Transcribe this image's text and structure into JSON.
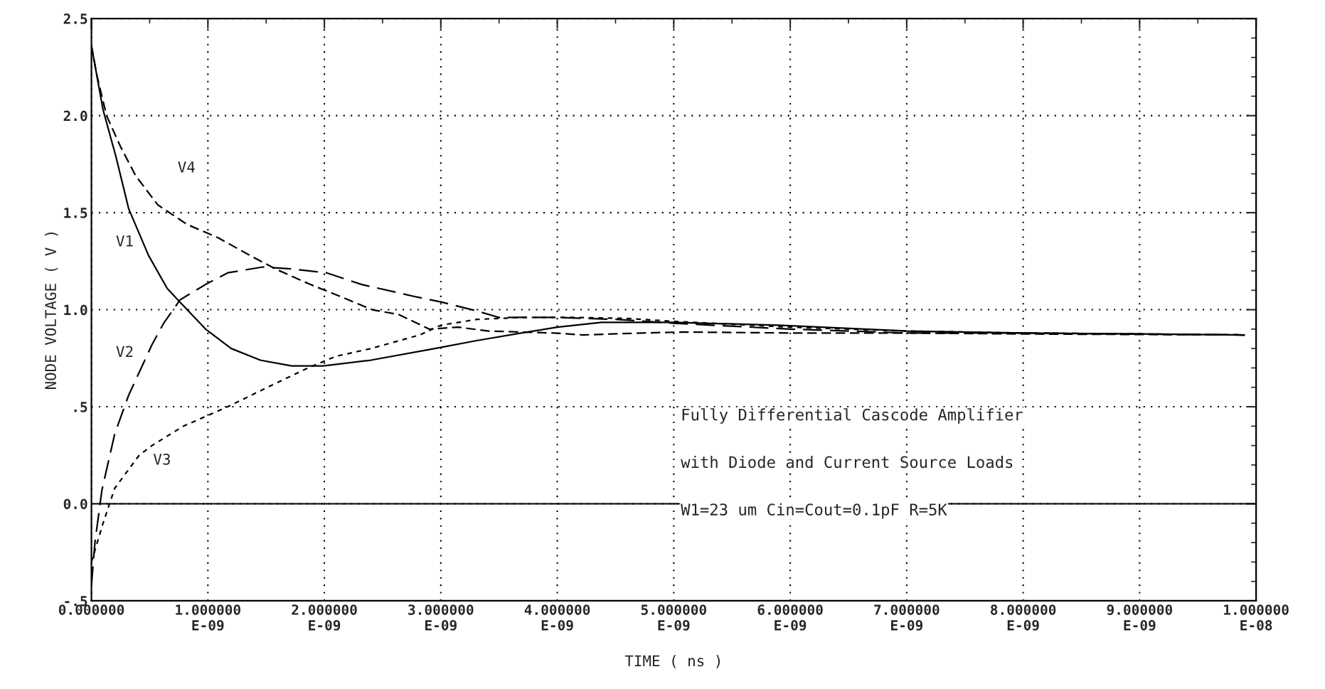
{
  "chart_data": {
    "type": "line",
    "xlabel": "TIME ( ns )",
    "ylabel": "NODE VOLTAGE ( V )",
    "xlim": [
      0,
      1e-08
    ],
    "ylim": [
      -0.5,
      2.5
    ],
    "xticks": [
      {
        "value": 0,
        "label": "0.000000"
      },
      {
        "value": 1e-09,
        "label": "1.000000E-09"
      },
      {
        "value": 2e-09,
        "label": "2.000000E-09"
      },
      {
        "value": 3e-09,
        "label": "3.000000E-09"
      },
      {
        "value": 4e-09,
        "label": "4.000000E-09"
      },
      {
        "value": 5e-09,
        "label": "5.000000E-09"
      },
      {
        "value": 6e-09,
        "label": "6.000000E-09"
      },
      {
        "value": 7e-09,
        "label": "7.000000E-09"
      },
      {
        "value": 8e-09,
        "label": "8.000000E-09"
      },
      {
        "value": 9e-09,
        "label": "9.000000E-09"
      },
      {
        "value": 1e-08,
        "label": "1.000000E-08"
      }
    ],
    "yticks": [
      {
        "value": -0.5,
        "label": "-.5"
      },
      {
        "value": 0,
        "label": "0.0"
      },
      {
        "value": 0.5,
        "label": ".5"
      },
      {
        "value": 1,
        "label": "1.0"
      },
      {
        "value": 1.5,
        "label": "1.5"
      },
      {
        "value": 2,
        "label": "2.0"
      },
      {
        "value": 2.5,
        "label": "2.5"
      }
    ],
    "grid": true,
    "legend": false,
    "marker": "none",
    "ref_lines": [
      {
        "axis": "y",
        "value": 0,
        "label": null,
        "color": "#000000",
        "line_style": "solid"
      }
    ],
    "series": [
      {
        "name": "V1",
        "color": "#000000",
        "line_style": "solid",
        "x": [
          0,
          1e-10,
          2.1e-10,
          3.2e-10,
          4.9e-10,
          6.5e-10,
          7.9e-10,
          9.8e-10,
          1.2e-09,
          1.45e-09,
          1.72e-09,
          1.99e-09,
          2.4e-09,
          2.95e-09,
          3.3e-09,
          3.69e-09,
          4e-09,
          4.38e-09,
          5e-09,
          5.9e-09,
          7e-09,
          8e-09,
          9e-09,
          9.9e-09
        ],
        "values": [
          2.36,
          2.03,
          1.79,
          1.52,
          1.28,
          1.11,
          1.02,
          0.9,
          0.8,
          0.74,
          0.71,
          0.71,
          0.74,
          0.8,
          0.84,
          0.88,
          0.91,
          0.935,
          0.935,
          0.92,
          0.89,
          0.88,
          0.875,
          0.87
        ]
      },
      {
        "name": "V2",
        "color": "#000000",
        "line_style": "dashed",
        "x": [
          0,
          3e-11,
          9e-11,
          2e-10,
          3.2e-10,
          4.2e-10,
          5.2e-10,
          6.2e-10,
          7.6e-10,
          8.4e-10,
          9.8e-10,
          1.17e-09,
          1.47e-09,
          1.72e-09,
          2.02e-09,
          2.32e-09,
          2.76e-09,
          3e-09,
          3.3e-09,
          3.5e-09,
          4e-09,
          4.5e-09,
          5e-09,
          6e-09,
          7e-09,
          8e-09,
          9.9e-09
        ],
        "values": [
          -0.42,
          -0.2,
          0.07,
          0.36,
          0.56,
          0.69,
          0.82,
          0.93,
          1.05,
          1.08,
          1.13,
          1.19,
          1.22,
          1.21,
          1.19,
          1.13,
          1.07,
          1.04,
          0.995,
          0.96,
          0.96,
          0.95,
          0.93,
          0.9,
          0.88,
          0.88,
          0.87
        ]
      },
      {
        "name": "V3",
        "color": "#000000",
        "line_style": "dashed",
        "x": [
          0,
          1e-10,
          2e-10,
          4.1e-10,
          5.2e-10,
          7.9e-10,
          9.8e-10,
          1.17e-09,
          1.58e-09,
          1.86e-09,
          2.1e-09,
          2.4e-09,
          2.82e-09,
          3e-09,
          3.31e-09,
          3.69e-09,
          4.15e-09,
          4.6e-09,
          5e-09,
          6e-09,
          7e-09,
          8e-09,
          9.9e-09
        ],
        "values": [
          -0.3,
          -0.1,
          0.08,
          0.25,
          0.3,
          0.4,
          0.45,
          0.5,
          0.62,
          0.7,
          0.76,
          0.8,
          0.87,
          0.92,
          0.95,
          0.96,
          0.96,
          0.955,
          0.94,
          0.91,
          0.89,
          0.88,
          0.87
        ]
      },
      {
        "name": "V4",
        "color": "#000000",
        "line_style": "dashed",
        "x": [
          0,
          5e-11,
          1.3e-10,
          2.5e-10,
          3.8e-10,
          5.7e-10,
          8.2e-10,
          1.09e-09,
          1.36e-09,
          1.58e-09,
          1.88e-09,
          2.13e-09,
          2.41e-09,
          2.64e-09,
          2.9e-09,
          3.15e-09,
          3.41e-09,
          3.97e-09,
          4.22e-09,
          4.73e-09,
          5.08e-09,
          6e-09,
          7e-09,
          8e-09,
          9.9e-09
        ],
        "values": [
          2.36,
          2.2,
          2.0,
          1.84,
          1.69,
          1.54,
          1.44,
          1.37,
          1.28,
          1.21,
          1.13,
          1.07,
          1.0,
          0.975,
          0.9,
          0.91,
          0.89,
          0.88,
          0.87,
          0.88,
          0.885,
          0.88,
          0.88,
          0.875,
          0.87
        ]
      }
    ],
    "annotations": [
      "Fully Differential Cascode Amplifier",
      "with Diode and Current Source Loads",
      "W1=23 um Cin=Cout=0.1pF R=5K"
    ]
  }
}
